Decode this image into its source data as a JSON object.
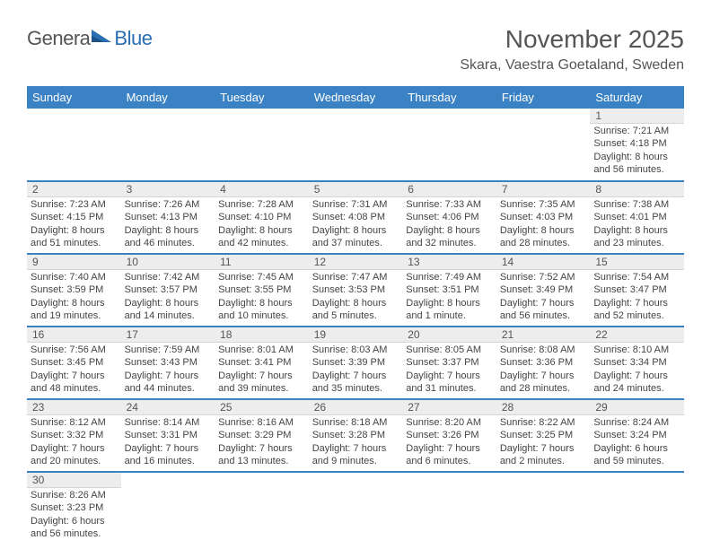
{
  "logo": {
    "text1": "Genera",
    "text2": "Blue"
  },
  "title": "November 2025",
  "location": "Skara, Vaestra Goetaland, Sweden",
  "colors": {
    "header_bg": "#3b82c4",
    "header_text": "#ffffff",
    "daynum_bg": "#ededed",
    "divider": "#3b82c4",
    "title_color": "#555555",
    "logo_blue": "#2a6db3",
    "body_text": "#444444"
  },
  "typography": {
    "title_fontsize": 28,
    "location_fontsize": 16,
    "header_fontsize": 13,
    "cell_fontsize": 11
  },
  "weekdays": [
    "Sunday",
    "Monday",
    "Tuesday",
    "Wednesday",
    "Thursday",
    "Friday",
    "Saturday"
  ],
  "weeks": [
    [
      null,
      null,
      null,
      null,
      null,
      null,
      {
        "n": "1",
        "sunrise": "Sunrise: 7:21 AM",
        "sunset": "Sunset: 4:18 PM",
        "daylight": "Daylight: 8 hours and 56 minutes."
      }
    ],
    [
      {
        "n": "2",
        "sunrise": "Sunrise: 7:23 AM",
        "sunset": "Sunset: 4:15 PM",
        "daylight": "Daylight: 8 hours and 51 minutes."
      },
      {
        "n": "3",
        "sunrise": "Sunrise: 7:26 AM",
        "sunset": "Sunset: 4:13 PM",
        "daylight": "Daylight: 8 hours and 46 minutes."
      },
      {
        "n": "4",
        "sunrise": "Sunrise: 7:28 AM",
        "sunset": "Sunset: 4:10 PM",
        "daylight": "Daylight: 8 hours and 42 minutes."
      },
      {
        "n": "5",
        "sunrise": "Sunrise: 7:31 AM",
        "sunset": "Sunset: 4:08 PM",
        "daylight": "Daylight: 8 hours and 37 minutes."
      },
      {
        "n": "6",
        "sunrise": "Sunrise: 7:33 AM",
        "sunset": "Sunset: 4:06 PM",
        "daylight": "Daylight: 8 hours and 32 minutes."
      },
      {
        "n": "7",
        "sunrise": "Sunrise: 7:35 AM",
        "sunset": "Sunset: 4:03 PM",
        "daylight": "Daylight: 8 hours and 28 minutes."
      },
      {
        "n": "8",
        "sunrise": "Sunrise: 7:38 AM",
        "sunset": "Sunset: 4:01 PM",
        "daylight": "Daylight: 8 hours and 23 minutes."
      }
    ],
    [
      {
        "n": "9",
        "sunrise": "Sunrise: 7:40 AM",
        "sunset": "Sunset: 3:59 PM",
        "daylight": "Daylight: 8 hours and 19 minutes."
      },
      {
        "n": "10",
        "sunrise": "Sunrise: 7:42 AM",
        "sunset": "Sunset: 3:57 PM",
        "daylight": "Daylight: 8 hours and 14 minutes."
      },
      {
        "n": "11",
        "sunrise": "Sunrise: 7:45 AM",
        "sunset": "Sunset: 3:55 PM",
        "daylight": "Daylight: 8 hours and 10 minutes."
      },
      {
        "n": "12",
        "sunrise": "Sunrise: 7:47 AM",
        "sunset": "Sunset: 3:53 PM",
        "daylight": "Daylight: 8 hours and 5 minutes."
      },
      {
        "n": "13",
        "sunrise": "Sunrise: 7:49 AM",
        "sunset": "Sunset: 3:51 PM",
        "daylight": "Daylight: 8 hours and 1 minute."
      },
      {
        "n": "14",
        "sunrise": "Sunrise: 7:52 AM",
        "sunset": "Sunset: 3:49 PM",
        "daylight": "Daylight: 7 hours and 56 minutes."
      },
      {
        "n": "15",
        "sunrise": "Sunrise: 7:54 AM",
        "sunset": "Sunset: 3:47 PM",
        "daylight": "Daylight: 7 hours and 52 minutes."
      }
    ],
    [
      {
        "n": "16",
        "sunrise": "Sunrise: 7:56 AM",
        "sunset": "Sunset: 3:45 PM",
        "daylight": "Daylight: 7 hours and 48 minutes."
      },
      {
        "n": "17",
        "sunrise": "Sunrise: 7:59 AM",
        "sunset": "Sunset: 3:43 PM",
        "daylight": "Daylight: 7 hours and 44 minutes."
      },
      {
        "n": "18",
        "sunrise": "Sunrise: 8:01 AM",
        "sunset": "Sunset: 3:41 PM",
        "daylight": "Daylight: 7 hours and 39 minutes."
      },
      {
        "n": "19",
        "sunrise": "Sunrise: 8:03 AM",
        "sunset": "Sunset: 3:39 PM",
        "daylight": "Daylight: 7 hours and 35 minutes."
      },
      {
        "n": "20",
        "sunrise": "Sunrise: 8:05 AM",
        "sunset": "Sunset: 3:37 PM",
        "daylight": "Daylight: 7 hours and 31 minutes."
      },
      {
        "n": "21",
        "sunrise": "Sunrise: 8:08 AM",
        "sunset": "Sunset: 3:36 PM",
        "daylight": "Daylight: 7 hours and 28 minutes."
      },
      {
        "n": "22",
        "sunrise": "Sunrise: 8:10 AM",
        "sunset": "Sunset: 3:34 PM",
        "daylight": "Daylight: 7 hours and 24 minutes."
      }
    ],
    [
      {
        "n": "23",
        "sunrise": "Sunrise: 8:12 AM",
        "sunset": "Sunset: 3:32 PM",
        "daylight": "Daylight: 7 hours and 20 minutes."
      },
      {
        "n": "24",
        "sunrise": "Sunrise: 8:14 AM",
        "sunset": "Sunset: 3:31 PM",
        "daylight": "Daylight: 7 hours and 16 minutes."
      },
      {
        "n": "25",
        "sunrise": "Sunrise: 8:16 AM",
        "sunset": "Sunset: 3:29 PM",
        "daylight": "Daylight: 7 hours and 13 minutes."
      },
      {
        "n": "26",
        "sunrise": "Sunrise: 8:18 AM",
        "sunset": "Sunset: 3:28 PM",
        "daylight": "Daylight: 7 hours and 9 minutes."
      },
      {
        "n": "27",
        "sunrise": "Sunrise: 8:20 AM",
        "sunset": "Sunset: 3:26 PM",
        "daylight": "Daylight: 7 hours and 6 minutes."
      },
      {
        "n": "28",
        "sunrise": "Sunrise: 8:22 AM",
        "sunset": "Sunset: 3:25 PM",
        "daylight": "Daylight: 7 hours and 2 minutes."
      },
      {
        "n": "29",
        "sunrise": "Sunrise: 8:24 AM",
        "sunset": "Sunset: 3:24 PM",
        "daylight": "Daylight: 6 hours and 59 minutes."
      }
    ],
    [
      {
        "n": "30",
        "sunrise": "Sunrise: 8:26 AM",
        "sunset": "Sunset: 3:23 PM",
        "daylight": "Daylight: 6 hours and 56 minutes."
      },
      null,
      null,
      null,
      null,
      null,
      null
    ]
  ]
}
